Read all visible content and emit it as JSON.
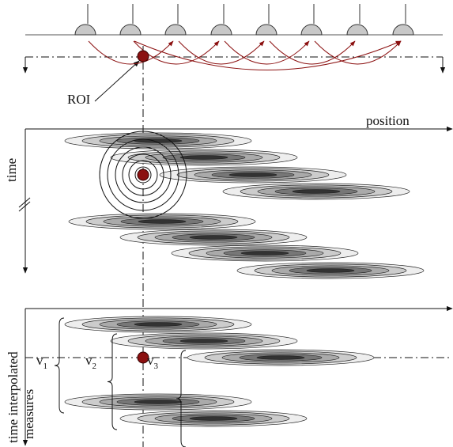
{
  "labels": {
    "roi": "ROI",
    "position": "position",
    "time": "time",
    "time_interpolated": [
      "time interpolated",
      "measures"
    ],
    "measures": [
      {
        "base": "v",
        "sub": "1"
      },
      {
        "base": "v",
        "sub": "2"
      },
      {
        "base": "v",
        "sub": "3"
      }
    ]
  }
}
